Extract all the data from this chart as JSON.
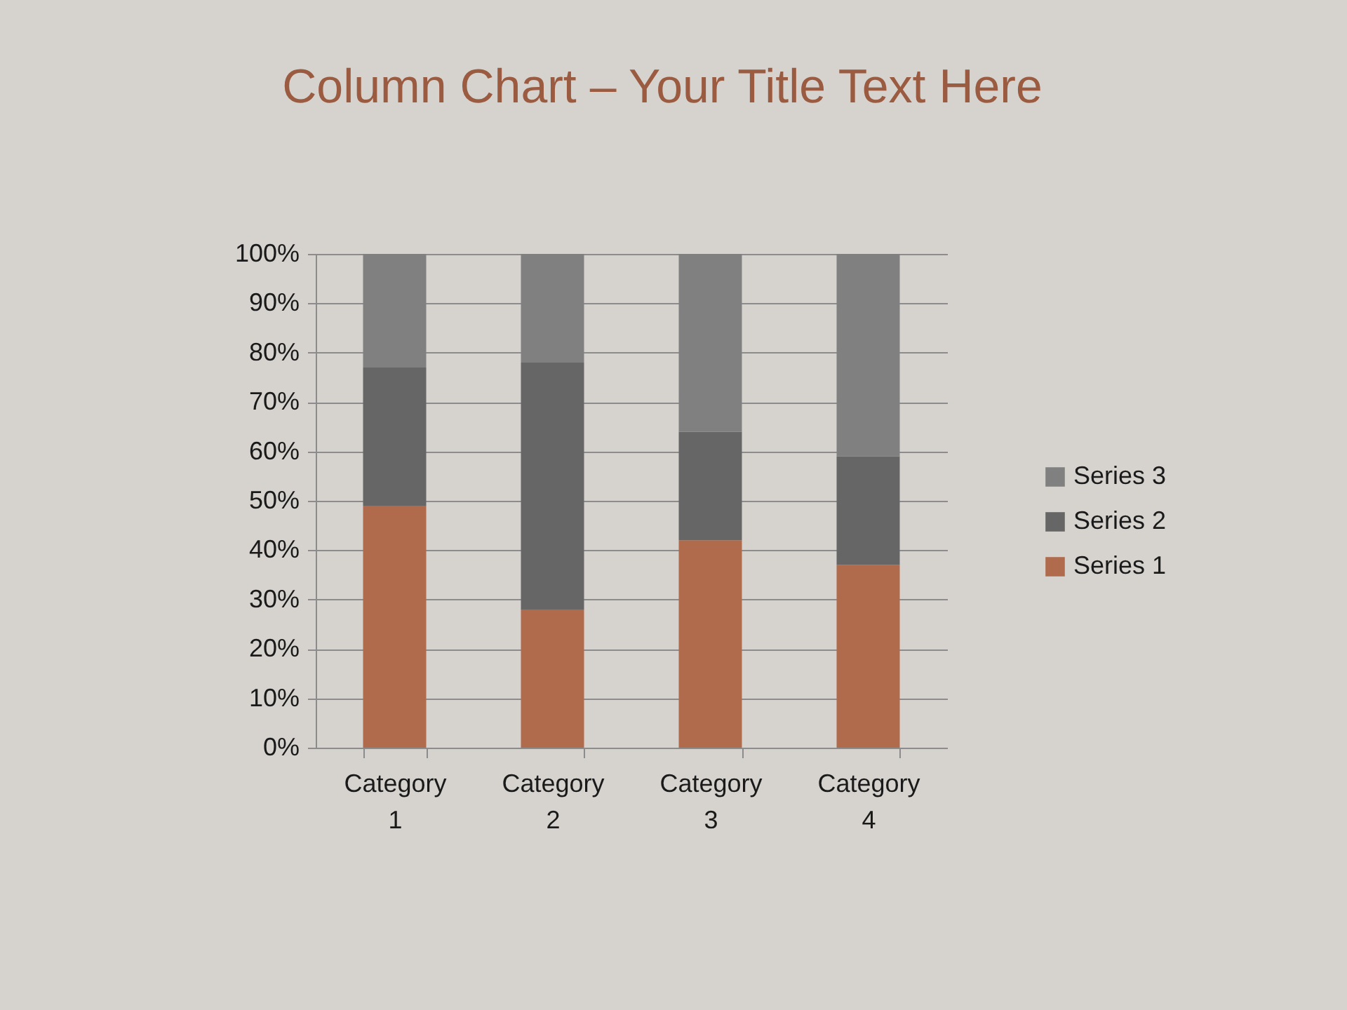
{
  "chart_data": {
    "type": "bar",
    "title": "Column Chart – Your Title Text Here",
    "categories": [
      "Category 1",
      "Category 2",
      "Category 3",
      "Category 4"
    ],
    "series": [
      {
        "name": "Series 1",
        "color": "#b06b4c",
        "values": [
          49,
          28,
          42,
          37
        ]
      },
      {
        "name": "Series 2",
        "color": "#666666",
        "values": [
          28,
          50,
          22,
          22
        ]
      },
      {
        "name": "Series 3",
        "color": "#808080",
        "values": [
          23,
          22,
          36,
          41
        ]
      }
    ],
    "stacked": true,
    "ylim": [
      0,
      100
    ],
    "yticks": [
      {
        "value": 0,
        "label": "0%"
      },
      {
        "value": 10,
        "label": "10%"
      },
      {
        "value": 20,
        "label": "20%"
      },
      {
        "value": 30,
        "label": "30%"
      },
      {
        "value": 40,
        "label": "40%"
      },
      {
        "value": 50,
        "label": "50%"
      },
      {
        "value": 60,
        "label": "60%"
      },
      {
        "value": 70,
        "label": "70%"
      },
      {
        "value": 80,
        "label": "80%"
      },
      {
        "value": 90,
        "label": "90%"
      },
      {
        "value": 100,
        "label": "100%"
      }
    ],
    "grid": "y",
    "legend": "right"
  }
}
